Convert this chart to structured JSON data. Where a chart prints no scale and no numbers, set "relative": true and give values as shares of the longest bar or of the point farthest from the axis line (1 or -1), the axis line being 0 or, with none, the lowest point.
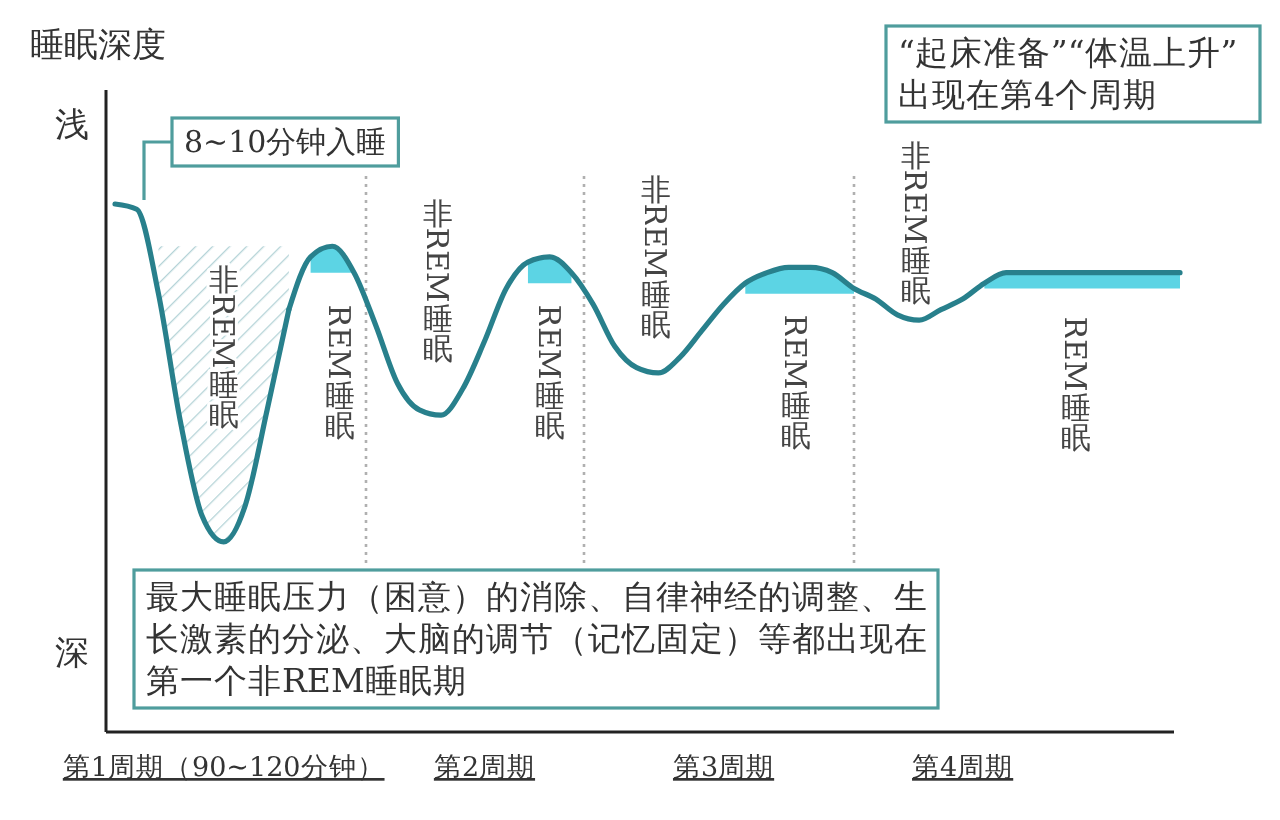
{
  "chart_data": {
    "type": "line",
    "relative": true,
    "ylabel": "睡眠深度",
    "categories": [
      null,
      null,
      null,
      null,
      null,
      "第1周期（90~120分钟）",
      null,
      null,
      null,
      null,
      null,
      null,
      null,
      null,
      null,
      null,
      null,
      "第2周期",
      null,
      null,
      null,
      null,
      null,
      null,
      null,
      null,
      null,
      null,
      "第3周期",
      null,
      null,
      null,
      null,
      null,
      null,
      null,
      null,
      null,
      null,
      "第4周期",
      null,
      null,
      null,
      null,
      null,
      null,
      null,
      null,
      null,
      null
    ],
    "series": [
      {
        "color": "#28808c",
        "values": [
          1.0,
          0.99,
          0.83,
          0.59,
          0.41,
          0.36,
          0.43,
          0.61,
          0.8,
          null,
          null,
          null,
          null,
          null,
          null,
          null,
          null,
          null,
          null,
          null,
          null,
          null,
          null,
          null,
          null,
          null,
          null,
          null,
          null,
          null,
          null,
          null,
          null,
          null,
          null,
          null,
          null,
          null,
          null,
          null,
          null,
          null,
          null,
          null,
          null,
          null,
          null,
          null,
          null,
          null
        ],
        "lower": [
          null,
          null,
          0.83,
          0.59,
          0.41,
          0.36,
          0.43,
          0.61,
          0.8,
          null,
          null,
          null,
          null,
          null,
          null,
          null,
          null,
          null,
          null,
          null,
          null,
          null,
          null,
          null,
          null,
          null,
          null,
          null,
          null,
          null,
          null,
          null,
          null,
          null,
          null,
          null,
          null,
          null,
          null,
          null,
          null,
          null,
          null,
          null,
          null,
          null,
          null,
          null,
          null,
          null
        ],
        "upper": [
          null,
          null,
          0.92,
          0.92,
          0.92,
          0.92,
          0.92,
          0.92,
          0.92,
          null,
          null,
          null,
          null,
          null,
          null,
          null,
          null,
          null,
          null,
          null,
          null,
          null,
          null,
          null,
          null,
          null,
          null,
          null,
          null,
          null,
          null,
          null,
          null,
          null,
          null,
          null,
          null,
          null,
          null,
          null,
          null,
          null,
          null,
          null,
          null,
          null,
          null,
          null,
          null,
          null
        ]
      },
      {
        "color": "#28808c",
        "values": [
          null,
          null,
          null,
          null,
          null,
          null,
          null,
          null,
          0.8,
          0.9,
          0.92,
          0.87,
          0.77,
          0.66,
          0.61,
          0.6,
          0.65,
          0.74,
          0.84,
          0.89,
          0.9,
          0.87,
          0.81,
          0.73,
          0.69,
          0.68,
          0.71,
          0.76,
          0.81,
          0.85,
          0.87,
          0.88,
          0.88,
          0.87,
          0.84,
          0.82,
          0.79,
          0.78,
          0.8,
          0.82,
          0.85,
          0.87,
          0.87,
          0.87,
          0.87,
          0.87,
          0.87,
          0.87,
          0.87,
          0.87
        ],
        "lower": [
          null,
          null,
          null,
          null,
          null,
          null,
          null,
          null,
          null,
          0.87,
          0.87,
          0.87,
          null,
          null,
          null,
          null,
          null,
          null,
          null,
          0.85,
          0.85,
          0.85,
          null,
          null,
          null,
          null,
          null,
          null,
          null,
          0.83,
          0.83,
          0.83,
          0.83,
          0.83,
          0.83,
          null,
          null,
          null,
          null,
          null,
          0.84,
          0.84,
          0.84,
          0.84,
          0.84,
          0.84,
          0.84,
          0.84,
          0.84,
          0.84
        ],
        "upper": [
          null,
          null,
          null,
          null,
          null,
          null,
          null,
          null,
          null,
          0.9,
          0.92,
          0.87,
          null,
          null,
          null,
          null,
          null,
          null,
          null,
          0.89,
          0.9,
          0.87,
          null,
          null,
          null,
          null,
          null,
          null,
          null,
          0.85,
          0.87,
          0.88,
          0.88,
          0.87,
          0.84,
          null,
          null,
          null,
          null,
          null,
          0.85,
          0.87,
          0.87,
          0.87,
          0.87,
          0.87,
          0.87,
          0.87,
          0.87,
          0.87
        ]
      }
    ],
    "annotations": [
      "浅",
      "深",
      "8~10分钟入睡",
      "“起床准备”“体温上升”出现在第4个周期",
      "最大睡眠压力（困意）的消除、自律神经的调整、生长激素的分泌、大脑的调节（记忆固定）等都出现在第一个非REM睡眠期",
      "非REM睡眠",
      "REM睡眠",
      "非REM睡眠",
      "REM睡眠",
      "非REM睡眠",
      "REM睡眠",
      "非REM睡眠",
      "REM睡眠"
    ]
  }
}
